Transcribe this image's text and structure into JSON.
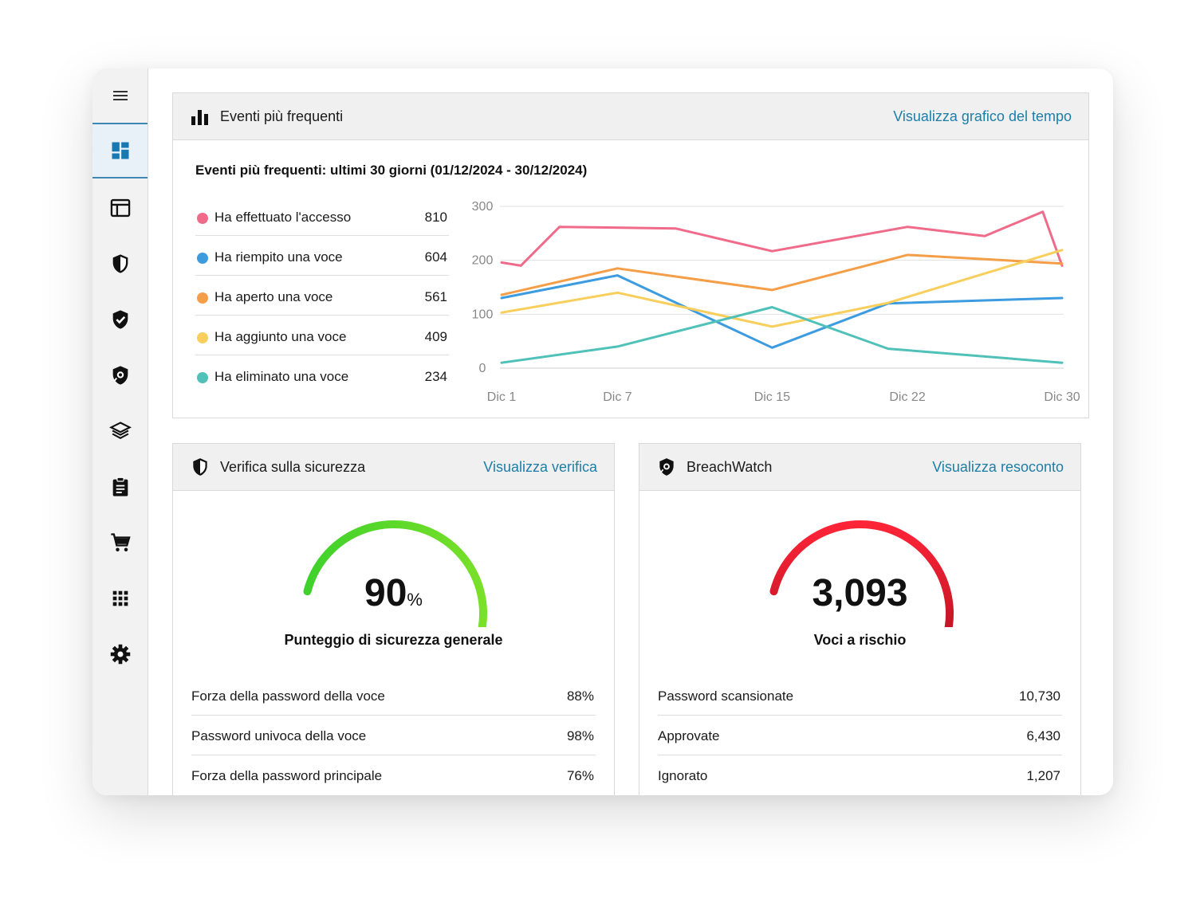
{
  "events": {
    "title": "Eventi più frequenti",
    "link": "Visualizza grafico del tempo",
    "subtitle": "Eventi più frequenti: ultimi 30 giorni (01/12/2024 - 30/12/2024)",
    "legend": [
      {
        "label": "Ha effettuato l'accesso",
        "value": "810",
        "color": "#f06a8a"
      },
      {
        "label": "Ha riempito una voce",
        "value": "604",
        "color": "#3d9be0"
      },
      {
        "label": "Ha aperto una voce",
        "value": "561",
        "color": "#f59e48"
      },
      {
        "label": "Ha aggiunto una voce",
        "value": "409",
        "color": "#f8cf5c"
      },
      {
        "label": "Ha eliminato una voce",
        "value": "234",
        "color": "#4fc1b8"
      }
    ]
  },
  "chart_data": {
    "type": "line",
    "x": [
      "Dic 1",
      "Dic 2",
      "Dic 7",
      "Dic 11",
      "Dic 15",
      "Dic 22",
      "Dic 26",
      "Dic 28",
      "Dic 30"
    ],
    "x_ticks": [
      "Dic 1",
      "Dic 7",
      "Dic 15",
      "Dic 22",
      "Dic 30"
    ],
    "y_ticks": [
      "300",
      "200",
      "100",
      "0"
    ],
    "ylim": [
      0,
      300
    ],
    "grid": true,
    "series": [
      {
        "name": "Ha effettuato l'accesso",
        "color": "#f06a8a",
        "points": [
          [
            "Dic 1",
            196
          ],
          [
            "Dic 2",
            190
          ],
          [
            "Dic 4",
            262
          ],
          [
            "Dic 10",
            259
          ],
          [
            "Dic 15",
            217
          ],
          [
            "Dic 22",
            262
          ],
          [
            "Dic 26",
            245
          ],
          [
            "Dic 29",
            290
          ],
          [
            "Dic 30",
            190
          ]
        ]
      },
      {
        "name": "Ha riempito una voce",
        "color": "#3d9be0",
        "points": [
          [
            "Dic 1",
            130
          ],
          [
            "Dic 7",
            172
          ],
          [
            "Dic 15",
            38
          ],
          [
            "Dic 21",
            120
          ],
          [
            "Dic 30",
            130
          ]
        ]
      },
      {
        "name": "Ha aperto una voce",
        "color": "#f59e48",
        "points": [
          [
            "Dic 1",
            136
          ],
          [
            "Dic 7",
            185
          ],
          [
            "Dic 15",
            145
          ],
          [
            "Dic 22",
            210
          ],
          [
            "Dic 30",
            194
          ]
        ]
      },
      {
        "name": "Ha aggiunto una voce",
        "color": "#f8cf5c",
        "points": [
          [
            "Dic 1",
            103
          ],
          [
            "Dic 7",
            140
          ],
          [
            "Dic 15",
            77
          ],
          [
            "Dic 21",
            121
          ],
          [
            "Dic 30",
            219
          ]
        ]
      },
      {
        "name": "Ha eliminato una voce",
        "color": "#4fc1b8",
        "points": [
          [
            "Dic 1",
            10
          ],
          [
            "Dic 7",
            40
          ],
          [
            "Dic 15",
            113
          ],
          [
            "Dic 21",
            36
          ],
          [
            "Dic 30",
            10
          ]
        ]
      }
    ]
  },
  "security": {
    "title": "Verifica sulla sicurezza",
    "link": "Visualizza verifica",
    "score": "90",
    "score_unit": "%",
    "score_fraction": 0.9,
    "score_label": "Punteggio di sicurezza generale",
    "gauge_color_start": "#3fd12b",
    "gauge_color_end": "#7ae02a",
    "rows": [
      {
        "label": "Forza della password della voce",
        "value": "88%"
      },
      {
        "label": "Password univoca della voce",
        "value": "98%"
      },
      {
        "label": "Forza della password principale",
        "value": "76%"
      }
    ]
  },
  "breach": {
    "title": "BreachWatch",
    "link": "Visualizza resoconto",
    "count": "3,093",
    "count_label": "Voci a rischio",
    "gauge_color_start": "#ff2438",
    "gauge_color_end": "#a8101e",
    "rows": [
      {
        "label": "Password scansionate",
        "value": "10,730"
      },
      {
        "label": "Approvate",
        "value": "6,430"
      },
      {
        "label": "Ignorato",
        "value": "1,207"
      }
    ]
  },
  "sidebar": {
    "items": [
      "menu-icon",
      "dashboard-icon",
      "layout-icon",
      "shield-icon",
      "shield-check-icon",
      "breachwatch-icon",
      "layers-icon",
      "clipboard-icon",
      "cart-icon",
      "grid-icon",
      "gear-icon"
    ],
    "active": "dashboard-icon",
    "accent": "#3d88b5"
  }
}
